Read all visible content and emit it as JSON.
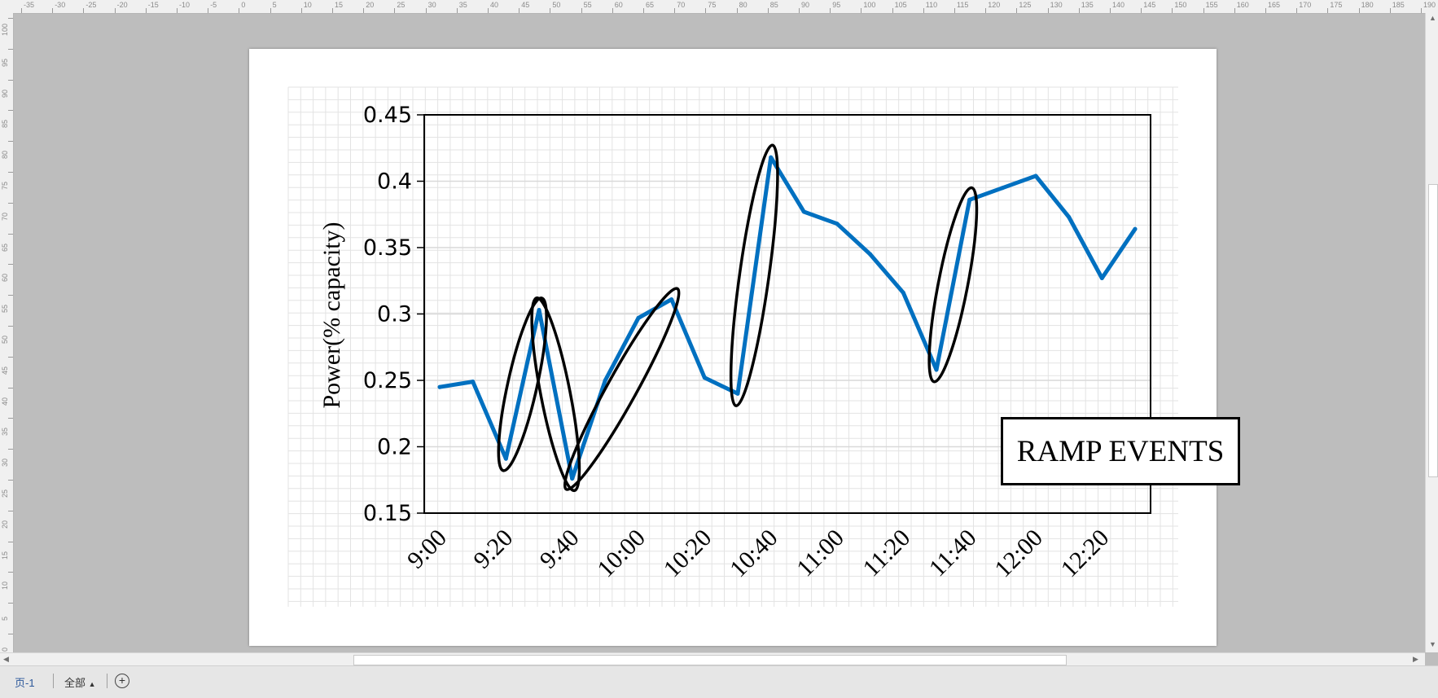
{
  "ruler": {
    "top_labels": [
      "-35",
      "-30",
      "-25",
      "-20",
      "-15",
      "-10",
      "-5",
      "0",
      "5",
      "10",
      "15",
      "20",
      "25",
      "30",
      "35",
      "40",
      "45",
      "50",
      "55",
      "60",
      "65",
      "70",
      "75",
      "80",
      "85",
      "90",
      "95",
      "100",
      "105",
      "110",
      "115",
      "120",
      "125",
      "130",
      "135",
      "140",
      "145",
      "150",
      "155",
      "160",
      "165",
      "170",
      "175",
      "180",
      "185",
      "190"
    ],
    "left_labels": [
      "100",
      "95",
      "90",
      "85",
      "80",
      "75",
      "70",
      "65",
      "60",
      "55",
      "50",
      "45",
      "40",
      "35",
      "30",
      "25",
      "20",
      "15",
      "10",
      "5",
      "0"
    ]
  },
  "chart_data": {
    "type": "line",
    "ylabel": "Power(% capacity)",
    "xlabel": "",
    "ylim": [
      0.15,
      0.45
    ],
    "y_ticks": [
      "0.45",
      "0.4",
      "0.35",
      "0.3",
      "0.25",
      "0.2",
      "0.15"
    ],
    "x_ticks": [
      "9:00",
      "9:20",
      "9:40",
      "10:00",
      "10:20",
      "10:40",
      "11:00",
      "11:20",
      "11:40",
      "12:00",
      "12:20"
    ],
    "x_minutes": [
      540,
      550,
      560,
      570,
      580,
      590,
      600,
      610,
      620,
      630,
      640,
      650,
      660,
      670,
      680,
      690,
      700,
      710,
      720,
      730,
      740,
      750
    ],
    "series": [
      {
        "values": [
          0.245,
          0.249,
          0.191,
          0.303,
          0.176,
          0.25,
          0.297,
          0.311,
          0.252,
          0.24,
          0.418,
          0.377,
          0.368,
          0.345,
          0.316,
          0.258,
          0.386,
          0.395,
          0.404,
          0.373,
          0.327,
          0.364
        ]
      }
    ],
    "series_color": "#0070C0",
    "grid": true,
    "annotation": "RAMP EVENTS"
  },
  "statusbar": {
    "page_tab": "页-1",
    "all_pages": "全部",
    "all_arrow": "▲",
    "add_icon": "+"
  }
}
